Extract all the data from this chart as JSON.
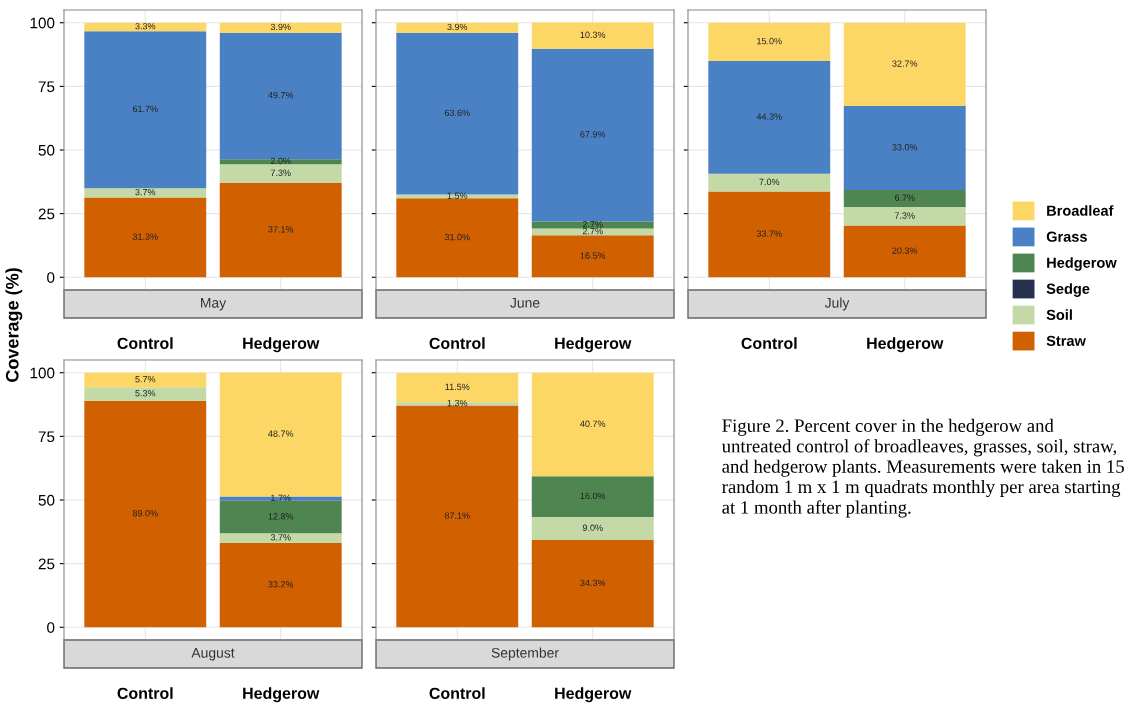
{
  "chart_data": [
    {
      "type": "bar",
      "stacked": true,
      "title": "May",
      "ylabel": "Coverage (%)",
      "categories": [
        "Control",
        "Hedgerow"
      ],
      "ylim": [
        -5,
        105
      ],
      "yticks": [
        0,
        25,
        50,
        75,
        100
      ],
      "grid": true,
      "series": [
        {
          "color": "#d06000",
          "values": [
            31.3,
            37.1
          ],
          "value_labels": [
            "31.3%",
            "37.1%"
          ]
        },
        {
          "color": "#c3d9a6",
          "values": [
            3.7,
            7.3
          ],
          "value_labels": [
            "3.7%",
            "7.3%"
          ]
        },
        {
          "color": "#27304f",
          "values": [
            0,
            0
          ],
          "value_labels": [
            null,
            null
          ]
        },
        {
          "color": "#4f8550",
          "values": [
            0,
            2.0
          ],
          "value_labels": [
            null,
            "2.0%"
          ]
        },
        {
          "color": "#4a81c4",
          "values": [
            61.7,
            49.7
          ],
          "value_labels": [
            "61.7%",
            "49.7%"
          ]
        },
        {
          "color": "#fdd766",
          "values": [
            3.3,
            3.9
          ],
          "value_labels": [
            "3.3%",
            "3.9%"
          ]
        }
      ]
    },
    {
      "type": "bar",
      "stacked": true,
      "title": "June",
      "categories": [
        "Control",
        "Hedgerow"
      ],
      "ylim": [
        -5,
        105
      ],
      "yticks": [
        0,
        25,
        50,
        75,
        100
      ],
      "grid": true,
      "tick_labels": "x",
      "series": [
        {
          "color": "#d06000",
          "values": [
            31.0,
            16.5
          ],
          "value_labels": [
            "31.0%",
            "16.5%"
          ]
        },
        {
          "color": "#c3d9a6",
          "values": [
            1.5,
            2.7
          ],
          "value_labels": [
            "1.5%",
            "2.7%"
          ]
        },
        {
          "color": "#27304f",
          "values": [
            0,
            0
          ],
          "value_labels": [
            null,
            null
          ]
        },
        {
          "color": "#4f8550",
          "values": [
            0,
            2.7
          ],
          "value_labels": [
            null,
            "2.7%"
          ]
        },
        {
          "color": "#4a81c4",
          "values": [
            63.6,
            67.9
          ],
          "value_labels": [
            "63.6%",
            "67.9%"
          ]
        },
        {
          "color": "#fdd766",
          "values": [
            3.9,
            10.3
          ],
          "value_labels": [
            "3.9%",
            "10.3%"
          ]
        }
      ]
    },
    {
      "type": "bar",
      "stacked": true,
      "title": "July",
      "categories": [
        "Control",
        "Hedgerow"
      ],
      "ylim": [
        -5,
        105
      ],
      "yticks": [
        0,
        25,
        50,
        75,
        100
      ],
      "grid": true,
      "tick_labels": "x",
      "legend": "right",
      "series": [
        {
          "name": "Straw",
          "color": "#d06000",
          "values": [
            33.7,
            20.3
          ],
          "value_labels": [
            "33.7%",
            "20.3%"
          ]
        },
        {
          "name": "Soil",
          "color": "#c3d9a6",
          "values": [
            7.0,
            7.3
          ],
          "value_labels": [
            "7.0%",
            "7.3%"
          ]
        },
        {
          "name": "Sedge",
          "color": "#27304f",
          "values": [
            0,
            0
          ],
          "value_labels": [
            null,
            null
          ]
        },
        {
          "name": "Hedgerow",
          "color": "#4f8550",
          "values": [
            0,
            6.7
          ],
          "value_labels": [
            null,
            "6.7%"
          ]
        },
        {
          "name": "Grass",
          "color": "#4a81c4",
          "values": [
            44.3,
            33.0
          ],
          "value_labels": [
            "44.3%",
            "33.0%"
          ]
        },
        {
          "name": "Broadleaf",
          "color": "#fdd766",
          "values": [
            15.0,
            32.7
          ],
          "value_labels": [
            "15.0%",
            "32.7%"
          ]
        }
      ]
    },
    {
      "type": "bar",
      "stacked": true,
      "title": "August",
      "categories": [
        "Control",
        "Hedgerow"
      ],
      "ylim": [
        -5,
        105
      ],
      "yticks": [
        0,
        25,
        50,
        75,
        100
      ],
      "grid": true,
      "series": [
        {
          "color": "#d06000",
          "values": [
            89.0,
            33.2
          ],
          "value_labels": [
            "89.0%",
            "33.2%"
          ]
        },
        {
          "color": "#c3d9a6",
          "values": [
            5.3,
            3.7
          ],
          "value_labels": [
            "5.3%",
            "3.7%"
          ]
        },
        {
          "color": "#27304f",
          "values": [
            0,
            0
          ],
          "value_labels": [
            null,
            null
          ]
        },
        {
          "color": "#4f8550",
          "values": [
            0,
            12.8
          ],
          "value_labels": [
            null,
            "12.8%"
          ]
        },
        {
          "color": "#4a81c4",
          "values": [
            0,
            1.7
          ],
          "value_labels": [
            null,
            "1.7%"
          ]
        },
        {
          "color": "#fdd766",
          "values": [
            5.7,
            48.7
          ],
          "value_labels": [
            "5.7%",
            "48.7%"
          ]
        }
      ]
    },
    {
      "type": "bar",
      "stacked": true,
      "title": "September",
      "categories": [
        "Control",
        "Hedgerow"
      ],
      "ylim": [
        -5,
        105
      ],
      "yticks": [
        0,
        25,
        50,
        75,
        100
      ],
      "grid": true,
      "tick_labels": "x",
      "annotations": [
        "Figure 2. Percent cover in the hedgerow and untreated control of broadleaves, grasses, soil, straw, and hedgerow plants. Measurements were taken in 15 random 1 m x 1 m quadrats monthly per area starting at 1 month after planting."
      ],
      "series": [
        {
          "color": "#d06000",
          "values": [
            87.1,
            34.3
          ],
          "value_labels": [
            "87.1%",
            "34.3%"
          ]
        },
        {
          "color": "#c3d9a6",
          "values": [
            1.3,
            9.0
          ],
          "value_labels": [
            "1.3%",
            "9.0%"
          ]
        },
        {
          "color": "#27304f",
          "values": [
            0,
            0
          ],
          "value_labels": [
            null,
            null
          ]
        },
        {
          "color": "#4f8550",
          "values": [
            0,
            16.0
          ],
          "value_labels": [
            null,
            "16.0%"
          ]
        },
        {
          "color": "#4a81c4",
          "values": [
            0,
            0
          ],
          "value_labels": [
            null,
            null
          ]
        },
        {
          "color": "#fdd766",
          "values": [
            11.5,
            40.7
          ],
          "value_labels": [
            "11.5%",
            "40.7%"
          ]
        }
      ]
    }
  ]
}
